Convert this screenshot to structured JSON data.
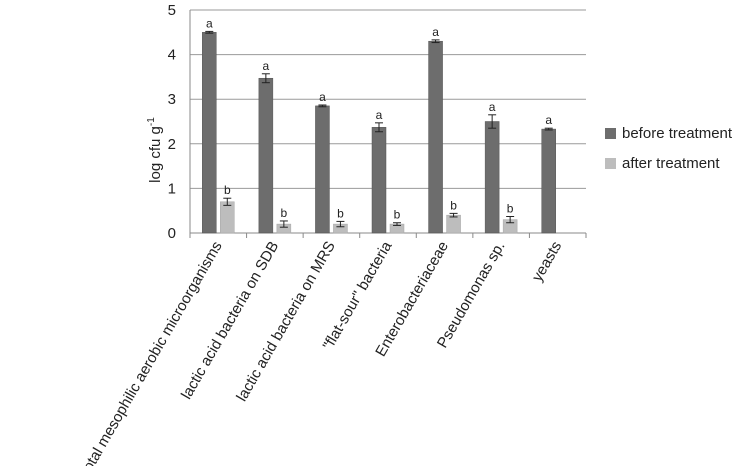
{
  "chart_data": {
    "type": "bar",
    "ylabel": "log cfu g",
    "ylabel_superscript": "-1",
    "ylim": [
      0,
      5
    ],
    "yticks": [
      "0",
      "1",
      "2",
      "3",
      "4",
      "5"
    ],
    "grid": true,
    "legend_position": "right",
    "categories": [
      "total mesophilic aerobic microorganisms",
      "lactic acid bacteria on SDB",
      "lactic acid bacteria on MRS",
      "\"flat-sour\" bacteria",
      "Enterobacteriaceae",
      "Pseudomonas sp.",
      "yeasts"
    ],
    "series": [
      {
        "name": "before treatment",
        "color": "#6d6d6d",
        "values": [
          4.5,
          3.47,
          2.85,
          2.37,
          4.3,
          2.5,
          2.33
        ],
        "errors": [
          0.02,
          0.1,
          0.02,
          0.1,
          0.03,
          0.15,
          0.02
        ],
        "labels": [
          "a",
          "a",
          "a",
          "a",
          "a",
          "a",
          "a"
        ]
      },
      {
        "name": "after treatment",
        "color": "#bdbdbd",
        "values": [
          0.7,
          0.2,
          0.2,
          0.2,
          0.4,
          0.3,
          null
        ],
        "errors": [
          0.08,
          0.07,
          0.06,
          0.03,
          0.04,
          0.07,
          null
        ],
        "labels": [
          "b",
          "b",
          "b",
          "b",
          "b",
          "b",
          null
        ]
      }
    ]
  }
}
